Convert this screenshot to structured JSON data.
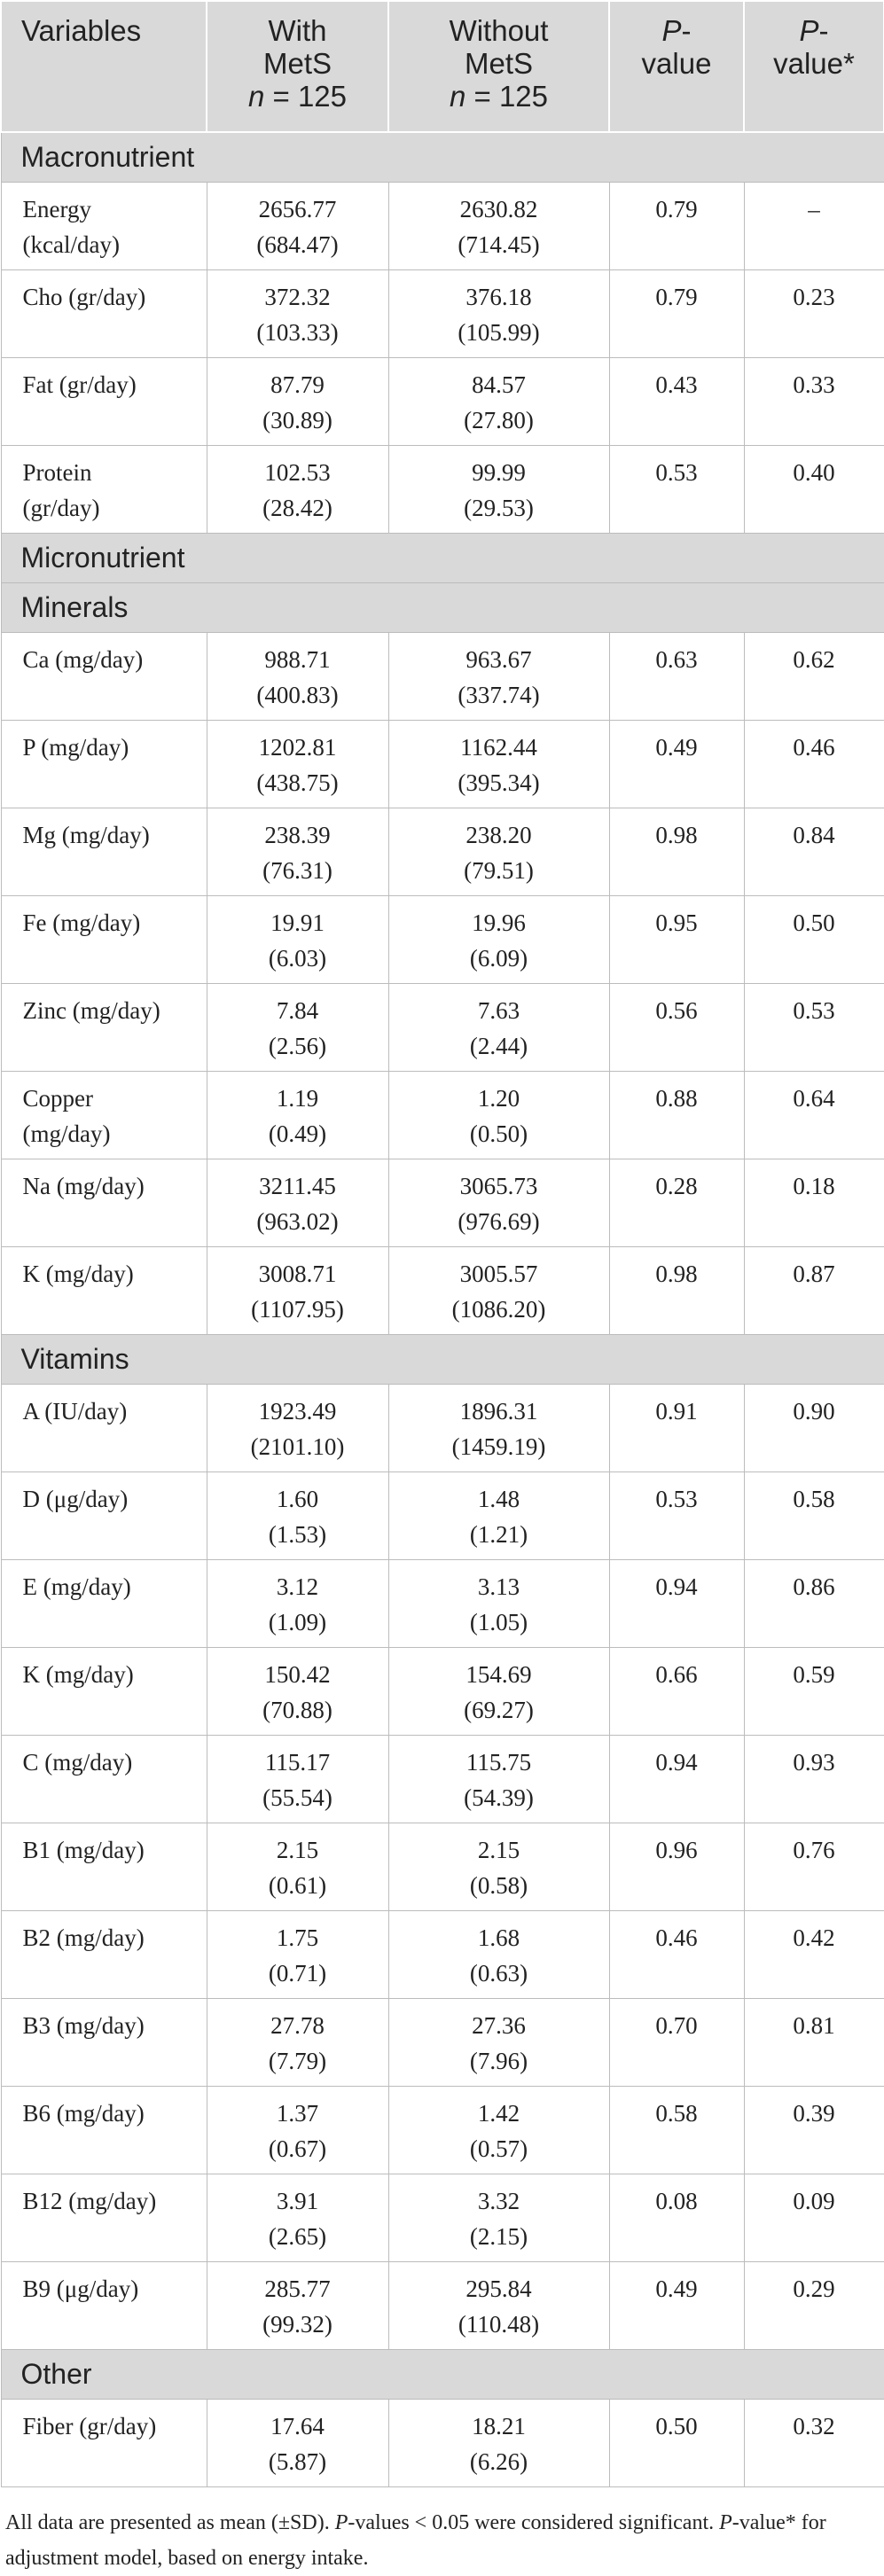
{
  "header": {
    "variables": "Variables",
    "with_line1": "With",
    "with_line2": "MetS",
    "with_n": "n",
    "with_n_rest": " = 125",
    "without_line1": "Without",
    "without_line2": "MetS",
    "without_n": "n",
    "without_n_rest": " = 125",
    "p_label": "P",
    "p_rest": "-",
    "p_line2": "value",
    "padj_label": "P",
    "padj_rest": "-",
    "padj_line2": "value*"
  },
  "sections": [
    {
      "title": "Macronutrient",
      "rows": [
        {
          "var1": "Energy",
          "var2": "(kcal/day)",
          "with_mean": "2656.77",
          "with_sd": "(684.47)",
          "without_mean": "2630.82",
          "without_sd": "(714.45)",
          "p": "0.79",
          "p_adj": "–"
        },
        {
          "var1": "Cho (gr/day)",
          "var2": "",
          "with_mean": "372.32",
          "with_sd": "(103.33)",
          "without_mean": "376.18",
          "without_sd": "(105.99)",
          "p": "0.79",
          "p_adj": "0.23"
        },
        {
          "var1": "Fat (gr/day)",
          "var2": "",
          "with_mean": "87.79",
          "with_sd": "(30.89)",
          "without_mean": "84.57",
          "without_sd": "(27.80)",
          "p": "0.43",
          "p_adj": "0.33"
        },
        {
          "var1": "Protein",
          "var2": "(gr/day)",
          "with_mean": "102.53",
          "with_sd": "(28.42)",
          "without_mean": "99.99",
          "without_sd": "(29.53)",
          "p": "0.53",
          "p_adj": "0.40"
        }
      ]
    },
    {
      "title": "Micronutrient",
      "rows": []
    },
    {
      "title": "Minerals",
      "rows": [
        {
          "var1": "Ca (mg/day)",
          "var2": "",
          "with_mean": "988.71",
          "with_sd": "(400.83)",
          "without_mean": "963.67",
          "without_sd": "(337.74)",
          "p": "0.63",
          "p_adj": "0.62"
        },
        {
          "var1": "P (mg/day)",
          "var2": "",
          "with_mean": "1202.81",
          "with_sd": "(438.75)",
          "without_mean": "1162.44",
          "without_sd": "(395.34)",
          "p": "0.49",
          "p_adj": "0.46"
        },
        {
          "var1": "Mg (mg/day)",
          "var2": "",
          "with_mean": "238.39",
          "with_sd": "(76.31)",
          "without_mean": "238.20",
          "without_sd": "(79.51)",
          "p": "0.98",
          "p_adj": "0.84"
        },
        {
          "var1": "Fe (mg/day)",
          "var2": "",
          "with_mean": "19.91",
          "with_sd": "(6.03)",
          "without_mean": "19.96",
          "without_sd": "(6.09)",
          "p": "0.95",
          "p_adj": "0.50"
        },
        {
          "var1": "Zinc (mg/day)",
          "var2": "",
          "with_mean": "7.84",
          "with_sd": "(2.56)",
          "without_mean": "7.63",
          "without_sd": "(2.44)",
          "p": "0.56",
          "p_adj": "0.53"
        },
        {
          "var1": "Copper",
          "var2": "(mg/day)",
          "with_mean": "1.19",
          "with_sd": "(0.49)",
          "without_mean": "1.20",
          "without_sd": "(0.50)",
          "p": "0.88",
          "p_adj": "0.64"
        },
        {
          "var1": "Na (mg/day)",
          "var2": "",
          "with_mean": "3211.45",
          "with_sd": "(963.02)",
          "without_mean": "3065.73",
          "without_sd": "(976.69)",
          "p": "0.28",
          "p_adj": "0.18"
        },
        {
          "var1": "K (mg/day)",
          "var2": "",
          "with_mean": "3008.71",
          "with_sd": "(1107.95)",
          "without_mean": "3005.57",
          "without_sd": "(1086.20)",
          "p": "0.98",
          "p_adj": "0.87"
        }
      ]
    },
    {
      "title": "Vitamins",
      "rows": [
        {
          "var1": "A (IU/day)",
          "var2": "",
          "with_mean": "1923.49",
          "with_sd": "(2101.10)",
          "without_mean": "1896.31",
          "without_sd": "(1459.19)",
          "p": "0.91",
          "p_adj": "0.90"
        },
        {
          "var1": "D (μg/day)",
          "var2": "",
          "with_mean": "1.60",
          "with_sd": "(1.53)",
          "without_mean": "1.48",
          "without_sd": "(1.21)",
          "p": "0.53",
          "p_adj": "0.58"
        },
        {
          "var1": "E (mg/day)",
          "var2": "",
          "with_mean": "3.12",
          "with_sd": "(1.09)",
          "without_mean": "3.13",
          "without_sd": "(1.05)",
          "p": "0.94",
          "p_adj": "0.86"
        },
        {
          "var1": "K (mg/day)",
          "var2": "",
          "with_mean": "150.42",
          "with_sd": "(70.88)",
          "without_mean": "154.69",
          "without_sd": "(69.27)",
          "p": "0.66",
          "p_adj": "0.59"
        },
        {
          "var1": "C (mg/day)",
          "var2": "",
          "with_mean": "115.17",
          "with_sd": "(55.54)",
          "without_mean": "115.75",
          "without_sd": "(54.39)",
          "p": "0.94",
          "p_adj": "0.93"
        },
        {
          "var1": "B1 (mg/day)",
          "var2": "",
          "with_mean": "2.15",
          "with_sd": "(0.61)",
          "without_mean": "2.15",
          "without_sd": "(0.58)",
          "p": "0.96",
          "p_adj": "0.76"
        },
        {
          "var1": "B2 (mg/day)",
          "var2": "",
          "with_mean": "1.75",
          "with_sd": "(0.71)",
          "without_mean": "1.68",
          "without_sd": "(0.63)",
          "p": "0.46",
          "p_adj": "0.42"
        },
        {
          "var1": "B3 (mg/day)",
          "var2": "",
          "with_mean": "27.78",
          "with_sd": "(7.79)",
          "without_mean": "27.36",
          "without_sd": "(7.96)",
          "p": "0.70",
          "p_adj": "0.81"
        },
        {
          "var1": "B6 (mg/day)",
          "var2": "",
          "with_mean": "1.37",
          "with_sd": "(0.67)",
          "without_mean": "1.42",
          "without_sd": "(0.57)",
          "p": "0.58",
          "p_adj": "0.39"
        },
        {
          "var1": "B12 (mg/day)",
          "var2": "",
          "with_mean": "3.91",
          "with_sd": "(2.65)",
          "without_mean": "3.32",
          "without_sd": "(2.15)",
          "p": "0.08",
          "p_adj": "0.09"
        },
        {
          "var1": "B9 (μg/day)",
          "var2": "",
          "with_mean": "285.77",
          "with_sd": "(99.32)",
          "without_mean": "295.84",
          "without_sd": "(110.48)",
          "p": "0.49",
          "p_adj": "0.29"
        }
      ]
    },
    {
      "title": "Other",
      "rows": [
        {
          "var1": "Fiber (gr/day)",
          "var2": "",
          "with_mean": "17.64",
          "with_sd": "(5.87)",
          "without_mean": "18.21",
          "without_sd": "(6.26)",
          "p": "0.50",
          "p_adj": "0.32"
        }
      ]
    }
  ],
  "footnote": {
    "part1": "All data are presented as mean (±SD). ",
    "p1": "P",
    "part2": "-values < 0.05 were considered significant. ",
    "p2": "P",
    "part3": "-value* for adjustment model, based on energy intake."
  }
}
